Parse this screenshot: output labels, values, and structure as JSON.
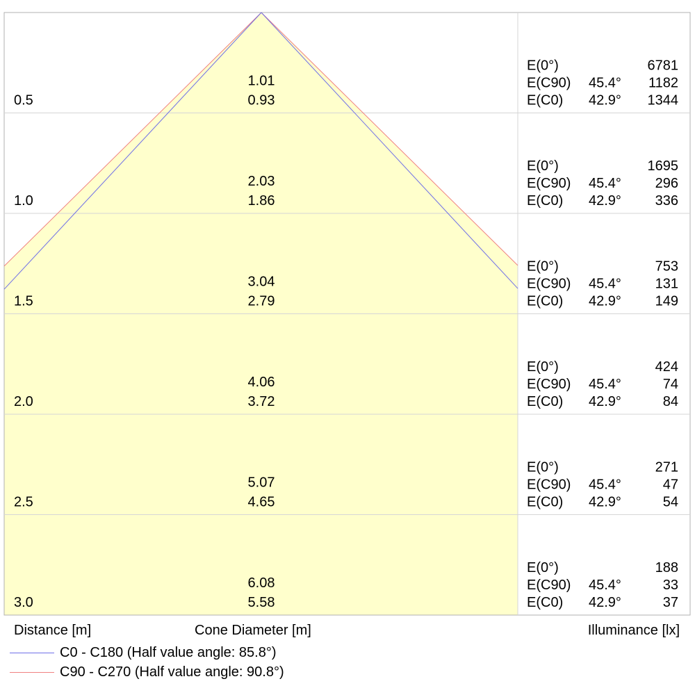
{
  "chart_data": {
    "type": "cone-diagram",
    "xlabel": "Distance [m]",
    "center_label": "Cone Diameter [m]",
    "right_label": "Illuminance [lx]",
    "distances": [
      "0.5",
      "1.0",
      "1.5",
      "2.0",
      "2.5",
      "3.0"
    ],
    "distance_values": [
      0.5,
      1.0,
      1.5,
      2.0,
      2.5,
      3.0
    ],
    "diameter_c90": [
      "1.01",
      "2.03",
      "3.04",
      "4.06",
      "5.07",
      "6.08"
    ],
    "diameter_c0": [
      "0.93",
      "1.86",
      "2.79",
      "3.72",
      "4.65",
      "5.58"
    ],
    "angle_c90": "45.4°",
    "angle_c0": "42.9°",
    "e_labels": {
      "e0": "E(0°)",
      "ec90": "E(C90)",
      "ec0": "E(C0)"
    },
    "e0": [
      "6781",
      "1695",
      "753",
      "424",
      "271",
      "188"
    ],
    "ec90": [
      "1182",
      "296",
      "131",
      "74",
      "47",
      "33"
    ],
    "ec0": [
      "1344",
      "336",
      "149",
      "84",
      "54",
      "37"
    ],
    "legend": [
      {
        "label": "C0 - C180 (Half value angle: 85.8°)",
        "color": "#6f6fe8",
        "half_angle_deg": 85.8
      },
      {
        "label": "C90 - C270 (Half value angle: 90.8°)",
        "color": "#f08080",
        "half_angle_deg": 90.8
      }
    ],
    "fill_color": "#ffffcc"
  }
}
